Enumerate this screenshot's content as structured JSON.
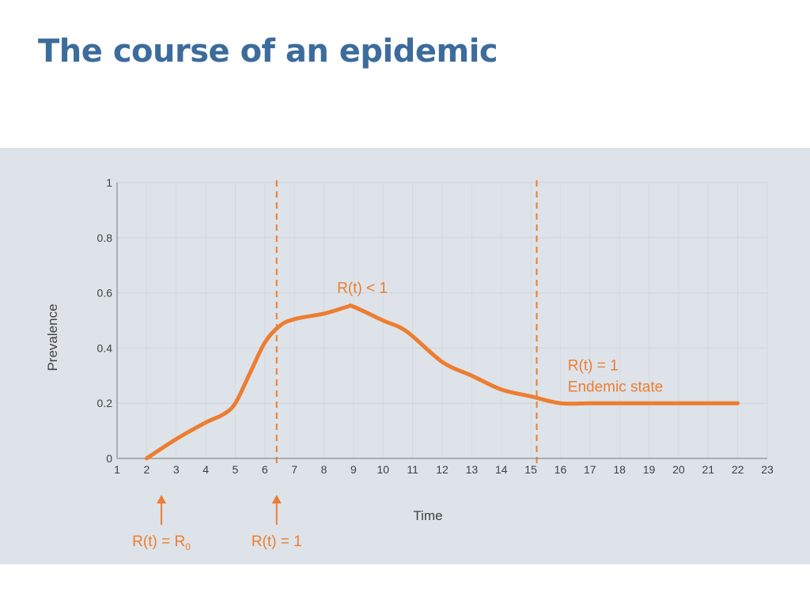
{
  "slide": {
    "title": "The course of an epidemic"
  },
  "colors": {
    "title": "#3c6c9c",
    "panel_background": "#dde3e8",
    "accent": "#ed7d31",
    "axis": "#8c8c8c",
    "gridline": "#cdd3d8",
    "tick_label": "#404040"
  },
  "chart_data": {
    "type": "line",
    "title": "",
    "xlabel": "Time",
    "ylabel": "Prevalence",
    "xlim": [
      1,
      23
    ],
    "ylim": [
      0,
      1
    ],
    "x_ticks": [
      1,
      2,
      3,
      4,
      5,
      6,
      7,
      8,
      9,
      10,
      11,
      12,
      13,
      14,
      15,
      16,
      17,
      18,
      19,
      20,
      21,
      22,
      23
    ],
    "y_ticks": [
      0,
      0.2,
      0.4,
      0.6,
      0.8,
      1
    ],
    "y_tick_labels": [
      "0",
      "0.2",
      "0.4",
      "0.6",
      "0.8",
      "1"
    ],
    "grid": true,
    "legend": "none",
    "series": [
      {
        "x": [
          2,
          3,
          4,
          4.6,
          5,
          5.5,
          6,
          6.5,
          7,
          8,
          8.8,
          9,
          10,
          10.8,
          12,
          13,
          14,
          15,
          16,
          17,
          18,
          19,
          20,
          21,
          22
        ],
        "y": [
          0,
          0.07,
          0.13,
          0.16,
          0.2,
          0.31,
          0.42,
          0.48,
          0.505,
          0.525,
          0.55,
          0.55,
          0.5,
          0.46,
          0.35,
          0.3,
          0.25,
          0.225,
          0.2,
          0.2,
          0.2,
          0.2,
          0.2,
          0.2,
          0.2
        ]
      }
    ],
    "vertical_lines": [
      {
        "x": 6.4,
        "style": "dashed"
      },
      {
        "x": 15.2,
        "style": "dashed"
      }
    ],
    "annotations": [
      {
        "text": "R(t) < 1",
        "x": 9.3,
        "y": 0.6,
        "align": "center"
      },
      {
        "lines": [
          "R(t) = 1",
          "Endemic state"
        ],
        "x": 16.25,
        "y": 0.32,
        "align": "left"
      }
    ],
    "markers": [
      {
        "x": 2.5,
        "label": "R(t) = R",
        "subscript": "0"
      },
      {
        "x": 6.4,
        "label": "R(t) = 1"
      }
    ]
  }
}
